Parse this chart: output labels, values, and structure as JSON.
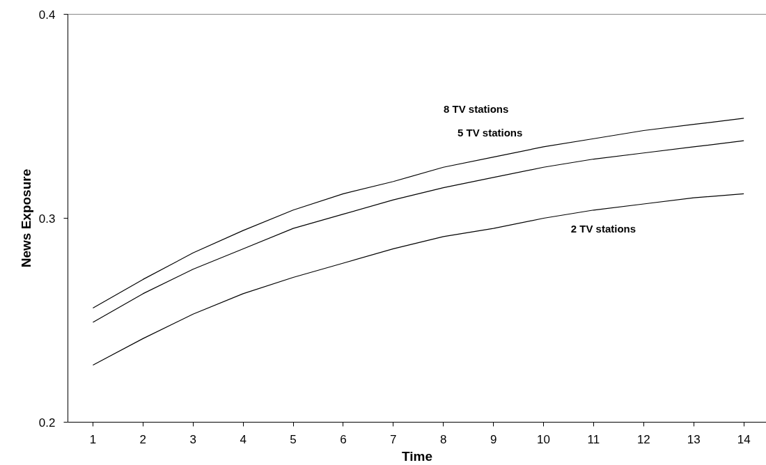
{
  "chart_data": {
    "type": "line",
    "xlabel": "Time",
    "ylabel": "News Exposure",
    "x": [
      1,
      2,
      3,
      4,
      5,
      6,
      7,
      8,
      9,
      10,
      11,
      12,
      13,
      14
    ],
    "xlim": [
      0.5,
      14.45
    ],
    "xticks": [
      1,
      2,
      3,
      4,
      5,
      6,
      7,
      8,
      9,
      10,
      11,
      12,
      13,
      14
    ],
    "ylim": [
      0.2,
      0.4
    ],
    "yticks": [
      0.2,
      0.3,
      0.4
    ],
    "grid": false,
    "marker": "none",
    "line_style": "solid",
    "series": [
      {
        "color": "#000000",
        "values": [
          0.256,
          0.27,
          0.283,
          0.294,
          0.304,
          0.312,
          0.318,
          0.325,
          0.33,
          0.335,
          0.339,
          0.343,
          0.346,
          0.349
        ]
      },
      {
        "color": "#000000",
        "values": [
          0.249,
          0.263,
          0.275,
          0.285,
          0.295,
          0.302,
          0.309,
          0.315,
          0.32,
          0.325,
          0.329,
          0.332,
          0.335,
          0.338
        ]
      },
      {
        "color": "#000000",
        "values": [
          0.228,
          0.241,
          0.253,
          0.263,
          0.271,
          0.278,
          0.285,
          0.291,
          0.295,
          0.3,
          0.304,
          0.307,
          0.31,
          0.312
        ]
      }
    ],
    "annotations": [
      "8 TV stations",
      "5 TV stations",
      "2 TV stations"
    ]
  }
}
